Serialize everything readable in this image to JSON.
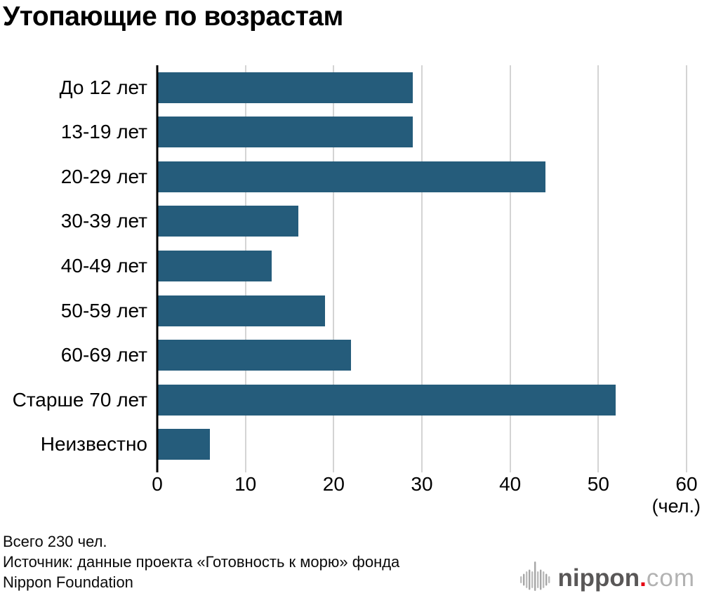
{
  "title": "Утопающие по возрастам",
  "chart_data": {
    "type": "bar",
    "orientation": "horizontal",
    "title": "Утопающие по возрастам",
    "categories": [
      "До 12 лет",
      "13-19 лет",
      "20-29 лет",
      "30-39 лет",
      "40-49 лет",
      "50-59 лет",
      "60-69 лет",
      "Старше 70 лет",
      "Неизвестно"
    ],
    "values": [
      29,
      29,
      44,
      16,
      13,
      19,
      22,
      52,
      6
    ],
    "total": 230,
    "xlabel": "(чел.)",
    "ylabel": "",
    "xlim": [
      0,
      60
    ],
    "xticks": [
      0,
      10,
      20,
      30,
      40,
      50,
      60
    ],
    "grid": true,
    "legend": "none",
    "bar_color": "#255C7B",
    "gridline_color": "#d4d4d4",
    "axis_color": "#000000"
  },
  "footer": {
    "total_line": "Всего 230 чел.",
    "source_line1": "Источник: данные проекта «Готовность к морю» фонда",
    "source_line2": "Nippon Foundation"
  },
  "logo": {
    "text_main": "nippon",
    "text_dot": ".",
    "text_suffix": "com",
    "color_main": "#595757",
    "color_dot": "#e60012",
    "color_suffix": "#b2b2b2",
    "icon_color": "#a6a6a6",
    "icon_name": "soundwave-circle-icon"
  }
}
